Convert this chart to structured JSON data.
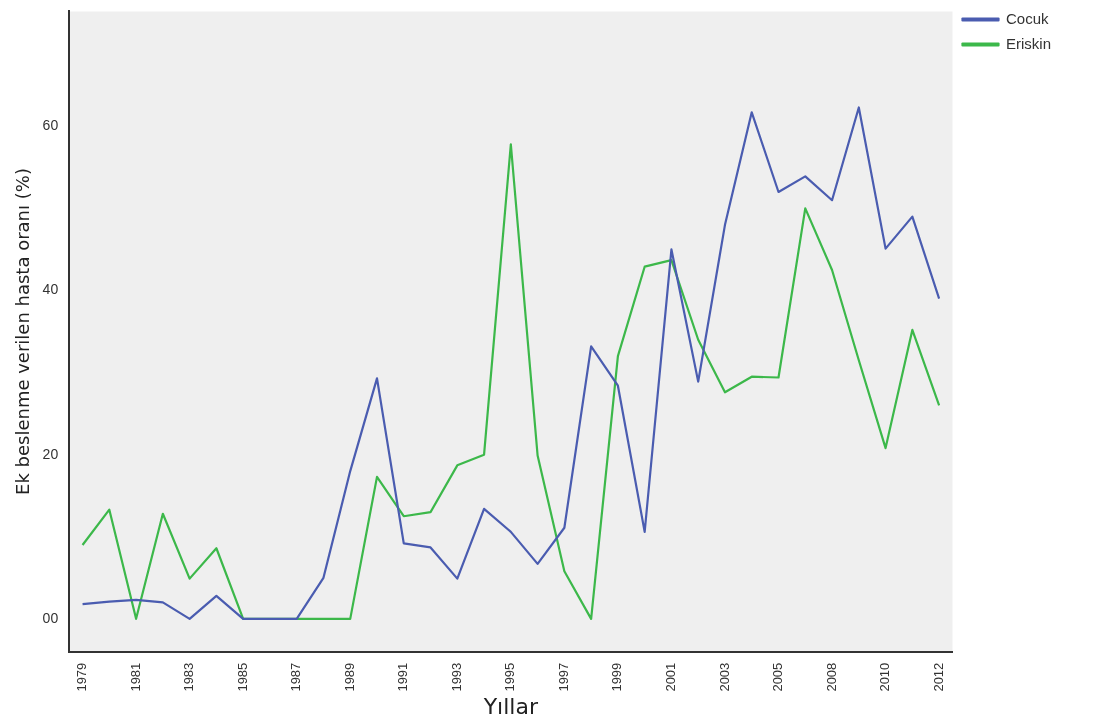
{
  "chart_data": {
    "type": "line",
    "xlabel": "Yıllar",
    "ylabel": "Ek beslenme verilen hasta oranı (%)",
    "categories": [
      "1979",
      null,
      "1981",
      null,
      "1983",
      null,
      "1985",
      null,
      "1987",
      null,
      "1989",
      null,
      "1991",
      null,
      "1993",
      null,
      "1995",
      null,
      "1997",
      null,
      "1999",
      null,
      "2001",
      null,
      "2003",
      null,
      "2005",
      null,
      "2008",
      null,
      "2010",
      null,
      "2012"
    ],
    "series": [
      {
        "name": "Cocuk",
        "color": "#4a5cb0",
        "values": [
          1.8,
          2.1,
          2.3,
          2.0,
          0,
          2.8,
          0,
          0,
          0,
          5,
          18,
          29.3,
          9.2,
          8.7,
          4.9,
          13.4,
          10.6,
          6.7,
          11.1,
          33.2,
          28.4,
          10.6,
          45,
          28.9,
          48,
          61.7,
          52,
          53.9,
          51,
          62.3,
          45.1,
          49,
          39
        ]
      },
      {
        "name": "Eriskin",
        "color": "#3cb84a",
        "values": [
          9,
          13.3,
          0,
          12.8,
          4.9,
          8.6,
          0,
          0,
          0,
          0,
          0,
          17.3,
          12.5,
          13,
          18.7,
          20,
          57.8,
          19.9,
          5.8,
          0,
          32,
          42.9,
          43.7,
          34,
          27.6,
          29.5,
          29.4,
          50,
          42.5,
          31.5,
          20.8,
          35.2,
          26
        ]
      }
    ],
    "ylim": [
      -4,
      74
    ],
    "yticks": [
      {
        "value": 0,
        "label": "00"
      },
      20,
      40,
      60
    ],
    "grid": false,
    "legend": "top right",
    "marker": "none",
    "line_style": "solid"
  }
}
